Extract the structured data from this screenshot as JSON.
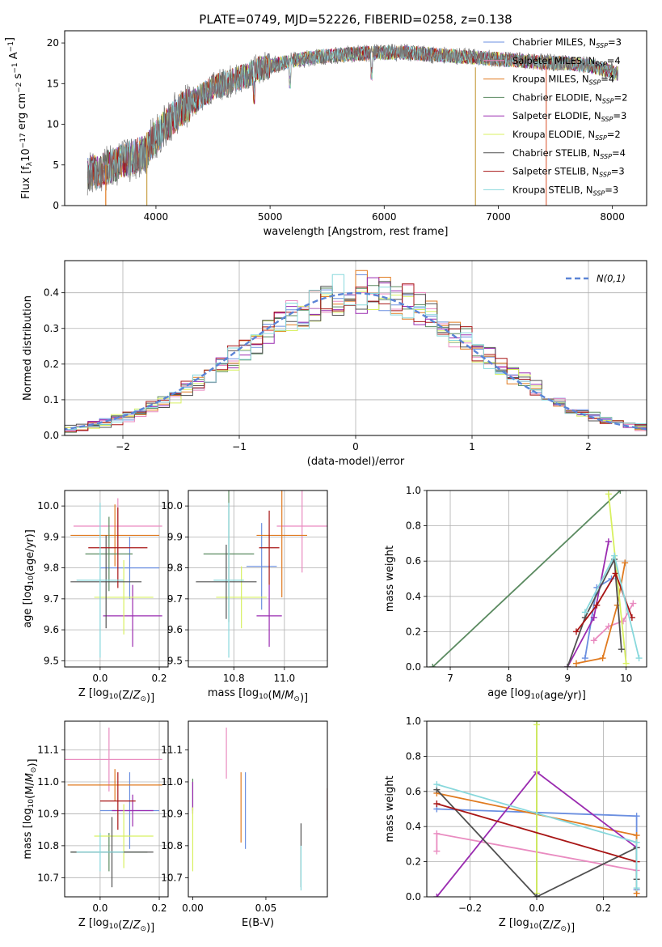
{
  "colors": {
    "Chabrier MILES": "#6b8fe0",
    "Salpeter MILES": "#e98bc0",
    "Kroupa MILES": "#e07a1f",
    "Chabrier ELODIE": "#5a8a60",
    "Salpeter ELODIE": "#9a2bb0",
    "Kroupa ELODIE": "#d8f060",
    "Chabrier STELIB": "#505050",
    "Salpeter STELIB": "#a81515",
    "Kroupa STELIB": "#88d8dc"
  },
  "chart_data": [
    {
      "type": "line",
      "title": "PLATE=0749, MJD=52226, FIBERID=0258, z=0.138",
      "xlabel": "wavelength [Angstrom, rest frame]",
      "ylabel": "Flux [f_λ10^-17 erg cm^-2 s^-1 A^-1]",
      "xlim": [
        3200,
        8300
      ],
      "ylim": [
        0,
        21.5
      ],
      "xticks": [
        4000,
        5000,
        6000,
        7000,
        8000
      ],
      "yticks": [
        0,
        5,
        10,
        15,
        20
      ],
      "grid": false,
      "legend": "top-right",
      "legend_entries": [
        {
          "label": "Chabrier MILES, N",
          "sub": "SSP",
          "suffix": "=3"
        },
        {
          "label": "Salpeter MILES, N",
          "sub": "SSP",
          "suffix": "=4"
        },
        {
          "label": "Kroupa MILES, N",
          "sub": "SSP",
          "suffix": "=4"
        },
        {
          "label": "Chabrier ELODIE, N",
          "sub": "SSP",
          "suffix": "=2"
        },
        {
          "label": "Salpeter ELODIE, N",
          "sub": "SSP",
          "suffix": "=3"
        },
        {
          "label": "Kroupa ELODIE, N",
          "sub": "SSP",
          "suffix": "=2"
        },
        {
          "label": "Chabrier STELIB, N",
          "sub": "SSP",
          "suffix": "=4"
        },
        {
          "label": "Salpeter STELIB, N",
          "sub": "SSP",
          "suffix": "=3"
        },
        {
          "label": "Kroupa STELIB, N",
          "sub": "SSP",
          "suffix": "=3"
        }
      ],
      "continuum_x": [
        3400,
        3500,
        3600,
        3700,
        3800,
        3900,
        4000,
        4100,
        4200,
        4300,
        4400,
        4500,
        4600,
        4700,
        4800,
        4900,
        5000,
        5200,
        5400,
        5600,
        5800,
        6000,
        6200,
        6400,
        6600,
        6800,
        7000,
        7200,
        7400,
        7600,
        7800,
        8000,
        8050
      ],
      "continuum_y": [
        4.0,
        4.2,
        4.8,
        5.5,
        6.0,
        6.5,
        8.5,
        10.0,
        11.5,
        12.5,
        13.5,
        14.5,
        15.0,
        15.5,
        16.0,
        16.8,
        17.2,
        17.8,
        18.3,
        18.5,
        18.7,
        18.8,
        18.8,
        18.6,
        18.4,
        18.2,
        18.0,
        17.8,
        17.6,
        17.5,
        17.2,
        16.5,
        16.2
      ],
      "vertical_spikes": [
        {
          "x": 3560,
          "y0": 0,
          "y1": 5
        },
        {
          "x": 3920,
          "y0": 0,
          "y1": 9
        },
        {
          "x": 6800,
          "y0": 0,
          "y1": 17
        },
        {
          "x": 7420,
          "y0": 0,
          "y1": 17.5
        }
      ]
    },
    {
      "type": "histogram",
      "xlabel": "(data-model)/error",
      "ylabel": "Normed distribution",
      "xlim": [
        -2.5,
        2.5
      ],
      "ylim": [
        0,
        0.49
      ],
      "xticks": [
        -2,
        -1,
        0,
        1,
        2
      ],
      "yticks": [
        0.0,
        0.1,
        0.2,
        0.3,
        0.4
      ],
      "grid": true,
      "legend": "top-right",
      "legend_label": "N(0,1)",
      "bin_width": 0.1
    },
    {
      "type": "errorbar",
      "xlabel": "Z [log10(Z/Z⊙)]",
      "ylabel": "age  [log10(age/yr)]",
      "xlim": [
        -0.12,
        0.23
      ],
      "ylim": [
        9.48,
        10.05
      ],
      "xticks": [
        0.0,
        0.2
      ],
      "yticks": [
        9.5,
        9.6,
        9.7,
        9.8,
        9.9,
        10.0
      ],
      "grid": true,
      "points": [
        {
          "s": "Chabrier MILES",
          "x": 0.1,
          "y": 9.8,
          "xe": 0.1,
          "ye": 0.1
        },
        {
          "s": "Salpeter MILES",
          "x": 0.06,
          "y": 9.935,
          "xe": 0.15,
          "ye": 0.09
        },
        {
          "s": "Kroupa MILES",
          "x": 0.05,
          "y": 9.905,
          "xe": 0.15,
          "ye": 0.1
        },
        {
          "s": "Chabrier ELODIE",
          "x": 0.03,
          "y": 9.845,
          "xe": 0.08,
          "ye": 0.12
        },
        {
          "s": "Salpeter ELODIE",
          "x": 0.11,
          "y": 9.645,
          "xe": 0.1,
          "ye": 0.1
        },
        {
          "s": "Kroupa ELODIE",
          "x": 0.08,
          "y": 9.705,
          "xe": 0.1,
          "ye": 0.12
        },
        {
          "s": "Chabrier STELIB",
          "x": 0.02,
          "y": 9.755,
          "xe": 0.12,
          "ye": 0.15
        },
        {
          "s": "Salpeter STELIB",
          "x": 0.06,
          "y": 9.865,
          "xe": 0.1,
          "ye": 0.13
        },
        {
          "s": "Kroupa STELIB",
          "x": 0.0,
          "y": 9.76,
          "xe": 0.08,
          "ye": 0.25
        }
      ]
    },
    {
      "type": "errorbar",
      "xlabel": "mass [log10(M/M⊙)]",
      "ylabel": "",
      "xlim": [
        10.62,
        11.17
      ],
      "ylim": [
        9.48,
        10.05
      ],
      "xticks": [
        10.8,
        11.0
      ],
      "yticks": [
        9.5,
        9.6,
        9.7,
        9.8,
        9.9,
        10.0
      ],
      "grid": true,
      "points": [
        {
          "s": "Chabrier MILES",
          "x": 10.91,
          "y": 9.805,
          "xe": 0.06,
          "ye": 0.14
        },
        {
          "s": "Salpeter MILES",
          "x": 11.07,
          "y": 9.935,
          "xe": 0.1,
          "ye": 0.15
        },
        {
          "s": "Kroupa MILES",
          "x": 10.99,
          "y": 9.905,
          "xe": 0.1,
          "ye": 0.2
        },
        {
          "s": "Chabrier ELODIE",
          "x": 10.78,
          "y": 9.845,
          "xe": 0.1,
          "ye": 0.22
        },
        {
          "s": "Salpeter ELODIE",
          "x": 10.94,
          "y": 9.645,
          "xe": 0.05,
          "ye": 0.1
        },
        {
          "s": "Kroupa ELODIE",
          "x": 10.83,
          "y": 9.705,
          "xe": 0.1,
          "ye": 0.1
        },
        {
          "s": "Chabrier STELIB",
          "x": 10.77,
          "y": 9.755,
          "xe": 0.12,
          "ye": 0.12
        },
        {
          "s": "Salpeter STELIB",
          "x": 10.94,
          "y": 9.865,
          "xe": 0.04,
          "ye": 0.12
        },
        {
          "s": "Kroupa STELIB",
          "x": 10.78,
          "y": 9.76,
          "xe": 0.06,
          "ye": 0.25
        }
      ]
    },
    {
      "type": "line",
      "xlabel": "age  [log10(age/yr)]",
      "ylabel": "mass weight",
      "xlim": [
        6.6,
        10.35
      ],
      "ylim": [
        0,
        1.0
      ],
      "xticks": [
        7,
        8,
        9,
        10
      ],
      "yticks": [
        0.0,
        0.2,
        0.4,
        0.6,
        0.8,
        1.0
      ],
      "grid": true,
      "series": [
        {
          "s": "Chabrier MILES",
          "x": [
            9.3,
            9.5,
            9.75
          ],
          "y": [
            0.05,
            0.45,
            0.5
          ]
        },
        {
          "s": "Salpeter MILES",
          "x": [
            9.45,
            9.7,
            9.95,
            10.12
          ],
          "y": [
            0.15,
            0.23,
            0.26,
            0.36
          ]
        },
        {
          "s": "Kroupa MILES",
          "x": [
            9.15,
            9.6,
            9.85,
            9.98
          ],
          "y": [
            0.02,
            0.05,
            0.35,
            0.59
          ]
        },
        {
          "s": "Chabrier ELODIE",
          "x": [
            6.7,
            9.9
          ],
          "y": [
            0.0,
            1.0
          ]
        },
        {
          "s": "Salpeter ELODIE",
          "x": [
            9.0,
            9.45,
            9.7
          ],
          "y": [
            0.0,
            0.28,
            0.71
          ]
        },
        {
          "s": "Kroupa ELODIE",
          "x": [
            9.7,
            10.0
          ],
          "y": [
            0.98,
            0.02
          ]
        },
        {
          "s": "Chabrier STELIB",
          "x": [
            9.0,
            9.3,
            9.8,
            9.92
          ],
          "y": [
            0.0,
            0.28,
            0.61,
            0.1
          ]
        },
        {
          "s": "Salpeter STELIB",
          "x": [
            9.15,
            9.5,
            9.82,
            10.1
          ],
          "y": [
            0.2,
            0.35,
            0.53,
            0.28
          ]
        },
        {
          "s": "Kroupa STELIB",
          "x": [
            9.3,
            9.8,
            10.22
          ],
          "y": [
            0.31,
            0.63,
            0.05
          ]
        }
      ]
    },
    {
      "type": "errorbar",
      "xlabel": "Z [log10(Z/Z⊙)]",
      "ylabel": "mass [log10(M/M⊙)]",
      "xlim": [
        -0.12,
        0.23
      ],
      "ylim": [
        10.64,
        11.19
      ],
      "xticks": [
        0.0,
        0.2
      ],
      "yticks": [
        10.7,
        10.8,
        10.9,
        11.0,
        11.1
      ],
      "grid": true,
      "points": [
        {
          "s": "Chabrier MILES",
          "x": 0.1,
          "y": 10.91,
          "xe": 0.1,
          "ye": 0.12
        },
        {
          "s": "Salpeter MILES",
          "x": 0.03,
          "y": 11.07,
          "xe": 0.18,
          "ye": 0.1
        },
        {
          "s": "Kroupa MILES",
          "x": 0.05,
          "y": 10.99,
          "xe": 0.16,
          "ye": 0.05
        },
        {
          "s": "Chabrier ELODIE",
          "x": 0.03,
          "y": 10.78,
          "xe": 0.13,
          "ye": 0.06
        },
        {
          "s": "Salpeter ELODIE",
          "x": 0.11,
          "y": 10.91,
          "xe": 0.07,
          "ye": 0.05
        },
        {
          "s": "Kroupa ELODIE",
          "x": 0.08,
          "y": 10.83,
          "xe": 0.1,
          "ye": 0.1
        },
        {
          "s": "Chabrier STELIB",
          "x": 0.04,
          "y": 10.78,
          "xe": 0.14,
          "ye": 0.11
        },
        {
          "s": "Salpeter STELIB",
          "x": 0.06,
          "y": 10.94,
          "xe": 0.06,
          "ye": 0.09
        },
        {
          "s": "Kroupa STELIB",
          "x": 0.0,
          "y": 10.78,
          "xe": 0.08,
          "ye": 0.06
        }
      ]
    },
    {
      "type": "errorbar",
      "xlabel": "E(B-V)",
      "ylabel": "",
      "xlim": [
        -0.003,
        0.092
      ],
      "ylim": [
        10.64,
        11.19
      ],
      "xticks": [
        0.0,
        0.05
      ],
      "yticks": [
        10.7,
        10.8,
        10.9,
        11.0,
        11.1
      ],
      "grid": false,
      "points": [
        {
          "s": "Chabrier MILES",
          "x": 0.036,
          "y": 10.91,
          "xe": 0,
          "ye": 0.12
        },
        {
          "s": "Salpeter MILES",
          "x": 0.023,
          "y": 11.09,
          "xe": 0,
          "ye": 0.08
        },
        {
          "s": "Kroupa MILES",
          "x": 0.033,
          "y": 10.92,
          "xe": 0,
          "ye": 0.11
        },
        {
          "s": "Chabrier ELODIE",
          "x": 0.0,
          "y": 10.96,
          "xe": 0,
          "ye": 0.05
        },
        {
          "s": "Salpeter ELODIE",
          "x": 0.0,
          "y": 10.95,
          "xe": 0,
          "ye": 0.05
        },
        {
          "s": "Kroupa ELODIE",
          "x": 0.0,
          "y": 10.82,
          "xe": 0,
          "ye": 0.1
        },
        {
          "s": "Chabrier STELIB",
          "x": 0.074,
          "y": 10.77,
          "xe": 0,
          "ye": 0.1
        },
        {
          "s": "Salpeter STELIB",
          "x": 0.092,
          "y": 10.93,
          "xe": 0,
          "ye": 0.05
        },
        {
          "s": "Kroupa STELIB",
          "x": 0.074,
          "y": 10.73,
          "xe": 0,
          "ye": 0.07
        }
      ]
    },
    {
      "type": "line",
      "xlabel": "Z [log10(Z/Z⊙)]",
      "ylabel": "mass weight",
      "xlim": [
        -0.33,
        0.33
      ],
      "ylim": [
        0,
        1.0
      ],
      "xticks": [
        -0.2,
        0.0,
        0.2
      ],
      "yticks": [
        0.0,
        0.2,
        0.4,
        0.6,
        0.8,
        1.0
      ],
      "grid": true,
      "series": [
        {
          "s": "Chabrier MILES",
          "x": [
            -0.3,
            0.3,
            0.3
          ],
          "y": [
            0.5,
            0.46,
            0.04
          ]
        },
        {
          "s": "Salpeter MILES",
          "x": [
            -0.3,
            -0.3,
            0.3
          ],
          "y": [
            0.26,
            0.36,
            0.15
          ]
        },
        {
          "s": "Kroupa MILES",
          "x": [
            -0.3,
            0.3,
            0.3
          ],
          "y": [
            0.59,
            0.35,
            0.02
          ]
        },
        {
          "s": "Chabrier ELODIE",
          "x": [
            0.0,
            0.0
          ],
          "y": [
            0.0,
            1.0
          ]
        },
        {
          "s": "Salpeter ELODIE",
          "x": [
            -0.3,
            0.0,
            0.3
          ],
          "y": [
            0.0,
            0.71,
            0.28
          ]
        },
        {
          "s": "Kroupa ELODIE",
          "x": [
            0.0,
            0.0
          ],
          "y": [
            0.02,
            0.98
          ]
        },
        {
          "s": "Chabrier STELIB",
          "x": [
            -0.3,
            0.0,
            0.3,
            0.3
          ],
          "y": [
            0.61,
            0.0,
            0.28,
            0.1
          ]
        },
        {
          "s": "Salpeter STELIB",
          "x": [
            -0.3,
            0.3
          ],
          "y": [
            0.53,
            0.2
          ]
        },
        {
          "s": "Kroupa STELIB",
          "x": [
            -0.3,
            0.3,
            0.3
          ],
          "y": [
            0.64,
            0.31,
            0.05
          ]
        }
      ]
    }
  ]
}
